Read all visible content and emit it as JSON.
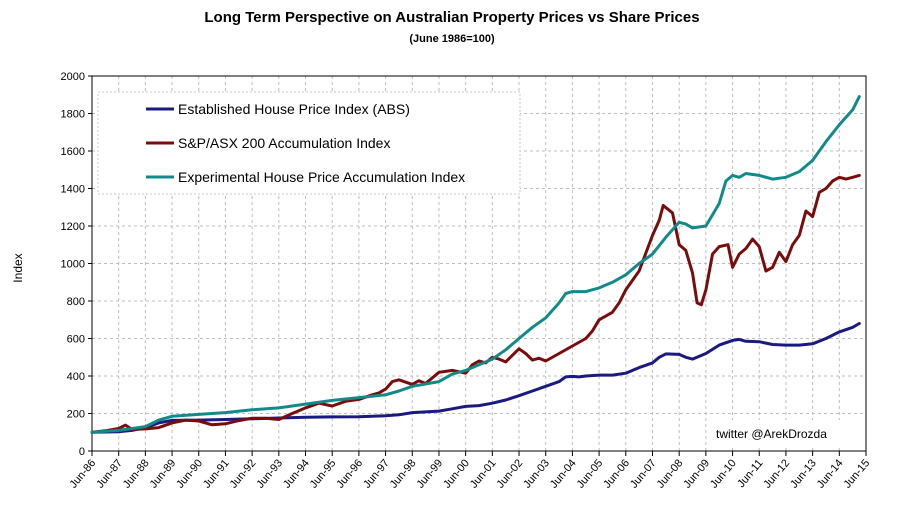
{
  "title": "Long Term Perspective on Australian Property Prices vs Share Prices",
  "subtitle": "(June 1986=100)",
  "watermark": "twitter @ArekDrozda",
  "chart_data": {
    "type": "line",
    "title": "Long Term Perspective on Australian Property Prices vs Share Prices",
    "subtitle": "(June 1986=100)",
    "ylabel": "Index",
    "xlabel": "",
    "ylim": [
      0,
      2000
    ],
    "yticks": [
      0,
      200,
      400,
      600,
      800,
      1000,
      1200,
      1400,
      1600,
      1800,
      2000
    ],
    "xticks": [
      "Jun-86",
      "Jun-87",
      "Jun-88",
      "Jun-89",
      "Jun-90",
      "Jun-91",
      "Jun-92",
      "Jun-93",
      "Jun-94",
      "Jun-95",
      "Jun-96",
      "Jun-97",
      "Jun-98",
      "Jun-99",
      "Jun-00",
      "Jun-01",
      "Jun-02",
      "Jun-03",
      "Jun-04",
      "Jun-05",
      "Jun-06",
      "Jun-07",
      "Jun-08",
      "Jun-09",
      "Jun-10",
      "Jun-11",
      "Jun-12",
      "Jun-13",
      "Jun-14",
      "Jun-15"
    ],
    "grid": true,
    "legend_position": "top-left",
    "series": [
      {
        "name": "Established House Price Index (ABS)",
        "color": "#1a1a80",
        "x": [
          1986.5,
          1987.5,
          1988.0,
          1988.5,
          1989.0,
          1989.5,
          1990.5,
          1991.5,
          1992.5,
          1993.5,
          1994.5,
          1995.5,
          1996.5,
          1997.5,
          1998.0,
          1998.5,
          1999.5,
          2000.0,
          2000.5,
          2001.0,
          2001.5,
          2002.0,
          2002.5,
          2003.0,
          2003.5,
          2004.0,
          2004.25,
          2004.5,
          2004.75,
          2005.0,
          2005.5,
          2006.0,
          2006.5,
          2007.0,
          2007.5,
          2007.75,
          2008.0,
          2008.5,
          2008.75,
          2009.0,
          2009.5,
          2010.0,
          2010.5,
          2010.75,
          2011.0,
          2011.5,
          2012.0,
          2012.5,
          2013.0,
          2013.5,
          2014.0,
          2014.5,
          2015.0,
          2015.25
        ],
        "y": [
          100,
          103,
          110,
          125,
          150,
          163,
          165,
          168,
          172,
          176,
          180,
          182,
          183,
          188,
          193,
          205,
          213,
          225,
          238,
          242,
          255,
          272,
          295,
          320,
          345,
          370,
          395,
          398,
          395,
          400,
          405,
          405,
          415,
          445,
          470,
          500,
          518,
          515,
          500,
          490,
          520,
          565,
          590,
          595,
          585,
          583,
          568,
          565,
          565,
          572,
          600,
          635,
          660,
          680
        ]
      },
      {
        "name": "S&P/ASX 200 Accumulation Index",
        "color": "#7b0c0c",
        "x": [
          1986.5,
          1987.0,
          1987.5,
          1987.75,
          1988.0,
          1988.5,
          1989.0,
          1989.5,
          1990.0,
          1990.5,
          1990.75,
          1991.0,
          1991.5,
          1992.0,
          1992.5,
          1993.0,
          1993.5,
          1994.0,
          1994.25,
          1994.5,
          1995.0,
          1995.5,
          1996.0,
          1996.5,
          1997.0,
          1997.25,
          1997.5,
          1997.75,
          1998.0,
          1998.5,
          1998.75,
          1999.0,
          1999.5,
          2000.0,
          2000.5,
          2000.75,
          2001.0,
          2001.25,
          2001.5,
          2001.75,
          2002.0,
          2002.5,
          2002.75,
          2003.0,
          2003.25,
          2003.5,
          2004.0,
          2004.5,
          2005.0,
          2005.25,
          2005.5,
          2006.0,
          2006.25,
          2006.5,
          2007.0,
          2007.5,
          2007.75,
          2007.9,
          2008.25,
          2008.5,
          2008.75,
          2009.0,
          2009.17,
          2009.33,
          2009.5,
          2009.75,
          2010.0,
          2010.33,
          2010.5,
          2010.75,
          2011.0,
          2011.25,
          2011.5,
          2011.75,
          2012.0,
          2012.25,
          2012.5,
          2012.75,
          2013.0,
          2013.25,
          2013.5,
          2013.75,
          2014.0,
          2014.25,
          2014.5,
          2014.75,
          2015.0,
          2015.25
        ],
        "y": [
          100,
          108,
          120,
          138,
          115,
          118,
          125,
          150,
          165,
          160,
          150,
          140,
          145,
          162,
          175,
          175,
          168,
          200,
          215,
          230,
          255,
          240,
          265,
          275,
          300,
          310,
          330,
          370,
          380,
          355,
          375,
          360,
          420,
          430,
          415,
          460,
          480,
          470,
          500,
          490,
          475,
          545,
          520,
          485,
          495,
          480,
          520,
          560,
          600,
          640,
          700,
          740,
          790,
          860,
          960,
          1150,
          1230,
          1310,
          1270,
          1100,
          1070,
          950,
          790,
          780,
          860,
          1050,
          1090,
          1100,
          980,
          1050,
          1080,
          1130,
          1090,
          960,
          980,
          1060,
          1010,
          1100,
          1150,
          1280,
          1250,
          1380,
          1400,
          1440,
          1460,
          1450,
          1460,
          1470
        ]
      },
      {
        "name": "Experimental House Price Accumulation Index",
        "color": "#138a8a",
        "x": [
          1986.5,
          1987.5,
          1988.5,
          1989.0,
          1989.5,
          1990.5,
          1991.5,
          1992.5,
          1993.5,
          1994.5,
          1995.5,
          1996.5,
          1997.5,
          1998.0,
          1998.5,
          1999.5,
          2000.0,
          2000.5,
          2001.0,
          2001.5,
          2002.0,
          2002.5,
          2003.0,
          2003.5,
          2004.0,
          2004.25,
          2004.5,
          2005.0,
          2005.5,
          2006.0,
          2006.5,
          2007.0,
          2007.5,
          2008.0,
          2008.5,
          2008.75,
          2009.0,
          2009.5,
          2010.0,
          2010.25,
          2010.5,
          2010.75,
          2011.0,
          2011.5,
          2012.0,
          2012.5,
          2013.0,
          2013.5,
          2014.0,
          2014.5,
          2015.0,
          2015.25
        ],
        "y": [
          100,
          110,
          130,
          165,
          185,
          195,
          205,
          220,
          230,
          250,
          270,
          285,
          300,
          320,
          345,
          370,
          410,
          430,
          460,
          490,
          540,
          600,
          660,
          710,
          790,
          840,
          850,
          850,
          870,
          900,
          940,
          1000,
          1050,
          1140,
          1220,
          1210,
          1190,
          1200,
          1320,
          1440,
          1470,
          1460,
          1480,
          1470,
          1450,
          1460,
          1490,
          1550,
          1650,
          1740,
          1820,
          1890
        ]
      }
    ]
  }
}
